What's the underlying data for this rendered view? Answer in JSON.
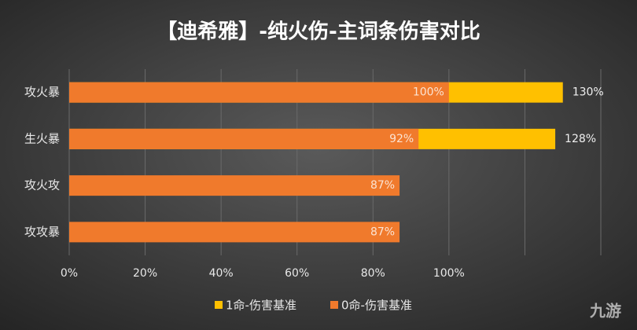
{
  "chart_data": {
    "type": "bar",
    "orientation": "horizontal",
    "overlap": true,
    "title": "【迪希雅】-纯火伤-主词条伤害对比",
    "categories": [
      "攻火暴",
      "生火暴",
      "攻火攻",
      "攻攻暴"
    ],
    "series": [
      {
        "name": "1命-伤害基准",
        "color": "#ffc000",
        "values": [
          130,
          128,
          null,
          null
        ],
        "value_labels": [
          "130%",
          "128%",
          null,
          null
        ]
      },
      {
        "name": "0命-伤害基准",
        "color": "#f07a2c",
        "values": [
          100,
          92,
          87,
          87
        ],
        "value_labels": [
          "100%",
          "92%",
          "87%",
          "87%"
        ]
      }
    ],
    "xlim": [
      0,
      140
    ],
    "xticks": [
      {
        "value": 0,
        "label": "0%"
      },
      {
        "value": 20,
        "label": "20%"
      },
      {
        "value": 40,
        "label": "40%"
      },
      {
        "value": 60,
        "label": "60%"
      },
      {
        "value": 80,
        "label": "80%"
      },
      {
        "value": 100,
        "label": "100%"
      },
      120,
      140
    ],
    "grid": true,
    "legend": "bottom",
    "watermark": "九游"
  }
}
